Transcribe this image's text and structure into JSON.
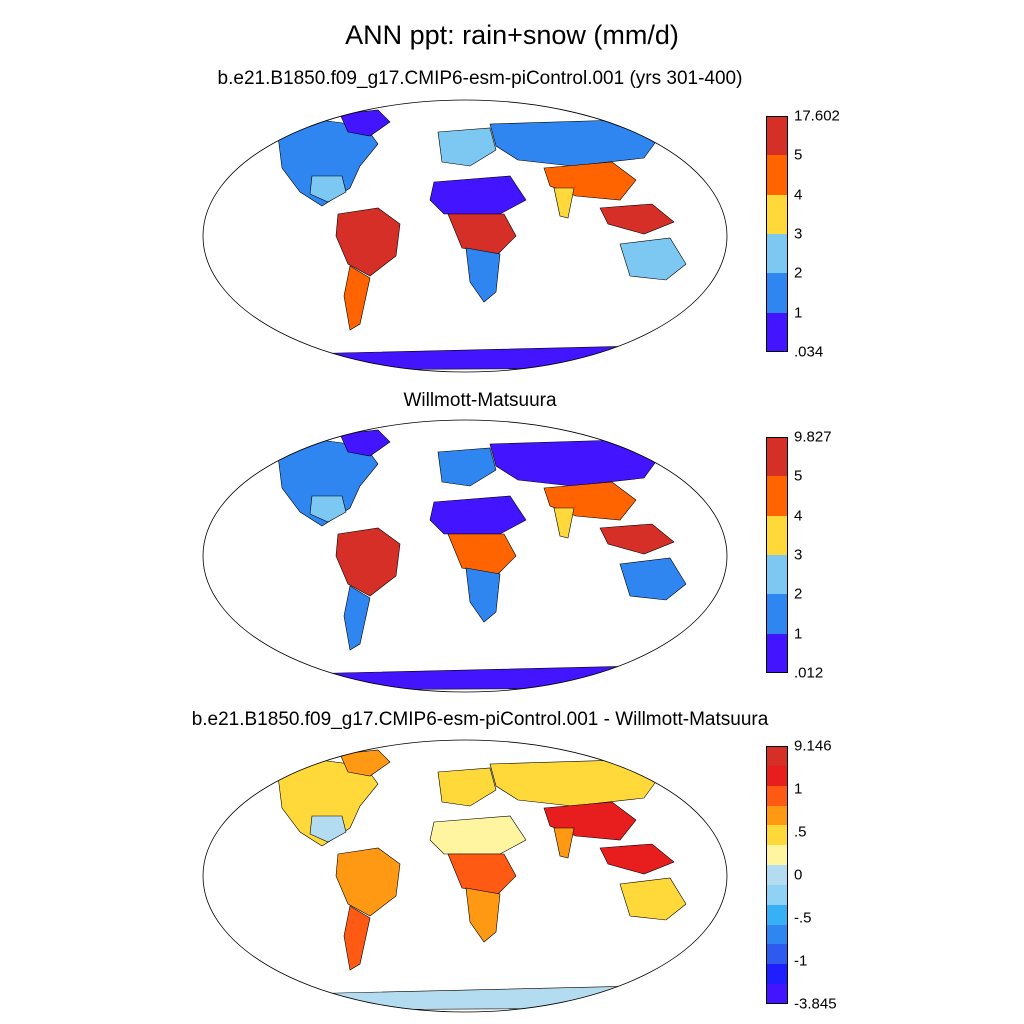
{
  "figure": {
    "main_title": "ANN ppt: rain+snow (mm/d)"
  },
  "panels": [
    {
      "title": "b.e21.B1850.f09_g17.CMIP6-esm-piControl.001 (yrs 301-400)",
      "colorbar": {
        "labels": [
          "17.602",
          "5",
          "4",
          "3",
          "2",
          "1",
          ".034"
        ],
        "colors": [
          "#d62f27",
          "#ff6400",
          "#ffd93a",
          "#7cc8f2",
          "#2f86f0",
          "#4214ff"
        ]
      },
      "regions": {
        "north_america": "#2f86f0",
        "greenland": "#4214ff",
        "amazon": "#d62f27",
        "sahara": "#4214ff",
        "central_africa": "#d62f27",
        "siberia": "#2f86f0",
        "south_asia": "#ff6400",
        "maritime": "#d62f27",
        "australia": "#7cc8f2",
        "antarctica": "#4214ff",
        "patagonia": "#ff6400",
        "south_africa": "#2f86f0",
        "india": "#ffd93a",
        "europe": "#7cc8f2",
        "se_us": "#7cc8f2"
      }
    },
    {
      "title": "Willmott-Matsuura",
      "colorbar": {
        "labels": [
          "9.827",
          "5",
          "4",
          "3",
          "2",
          "1",
          ".012"
        ],
        "colors": [
          "#d62f27",
          "#ff6400",
          "#ffd93a",
          "#7cc8f2",
          "#2f86f0",
          "#4214ff"
        ]
      },
      "regions": {
        "north_america": "#2f86f0",
        "greenland": "#4214ff",
        "amazon": "#d62f27",
        "sahara": "#4214ff",
        "central_africa": "#ff6400",
        "siberia": "#4214ff",
        "south_asia": "#ff6400",
        "maritime": "#d62f27",
        "australia": "#2f86f0",
        "antarctica": "#4214ff",
        "patagonia": "#2f86f0",
        "south_africa": "#2f86f0",
        "india": "#ffd93a",
        "europe": "#2f86f0",
        "se_us": "#7cc8f2"
      }
    },
    {
      "title": "b.e21.B1850.f09_g17.CMIP6-esm-piControl.001 - Willmott-Matsuura",
      "colorbar": {
        "labels": [
          "9.146",
          "1",
          ".5",
          "0",
          "-.5",
          "-1",
          "-3.845"
        ],
        "colors": [
          "#d62f27",
          "#e81e1e",
          "#ff5a14",
          "#ff9914",
          "#ffd93a",
          "#fff5a0",
          "#b4dcf0",
          "#8fd2f5",
          "#38b0f5",
          "#2f86f0",
          "#2f5af0",
          "#1e1eff",
          "#4214ff"
        ]
      },
      "regions": {
        "north_america": "#ffd93a",
        "greenland": "#ff9914",
        "amazon": "#ff9914",
        "sahara": "#fff5a0",
        "central_africa": "#ff5a14",
        "siberia": "#ffd93a",
        "south_asia": "#e81e1e",
        "maritime": "#e81e1e",
        "australia": "#ffd93a",
        "antarctica": "#b4dcf0",
        "patagonia": "#ff5a14",
        "south_africa": "#ff9914",
        "india": "#ff9914",
        "europe": "#ffd93a",
        "se_us": "#b4dcf0"
      }
    }
  ]
}
